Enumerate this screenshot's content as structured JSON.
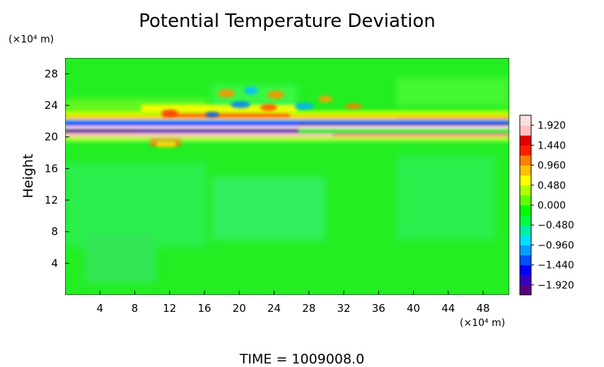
{
  "chart_data": {
    "type": "heatmap",
    "title": "Potential Temperature Deviation",
    "ylabel": "Height",
    "xlabel": "",
    "y_unit": "(×10⁴ m)",
    "x_unit": "(×10⁴ m)",
    "xlim": [
      0,
      51
    ],
    "ylim": [
      0,
      30
    ],
    "x_ticks": [
      "4",
      "8",
      "12",
      "16",
      "20",
      "24",
      "28",
      "32",
      "36",
      "40",
      "44",
      "48"
    ],
    "y_ticks": [
      "4",
      "8",
      "12",
      "16",
      "20",
      "24",
      "28"
    ],
    "x_tick_values": [
      4,
      8,
      12,
      16,
      20,
      24,
      28,
      32,
      36,
      40,
      44,
      48
    ],
    "y_tick_values": [
      4,
      8,
      12,
      16,
      20,
      24,
      28
    ],
    "colorbar": {
      "range": [
        -2.16,
        2.16
      ],
      "labels": [
        "1.920",
        "1.440",
        "0.960",
        "0.480",
        "0.000",
        "−0.480",
        "−0.960",
        "−1.440",
        "−1.920"
      ],
      "label_values": [
        1.92,
        1.44,
        0.96,
        0.48,
        0.0,
        -0.48,
        -0.96,
        -1.44,
        -1.92
      ],
      "colors": [
        "#5a007f",
        "#3a00c0",
        "#0000ff",
        "#0050ff",
        "#00a0ff",
        "#00e0ff",
        "#00f0a0",
        "#00ff40",
        "#00ff00",
        "#60ff00",
        "#b0ff00",
        "#ffff00",
        "#ffc000",
        "#ff8000",
        "#ff2000",
        "#e00000",
        "#ffc0c0",
        "#ffe0e0"
      ]
    },
    "footer": "TIME  =  1009008.0",
    "background_value": 0.0
  }
}
